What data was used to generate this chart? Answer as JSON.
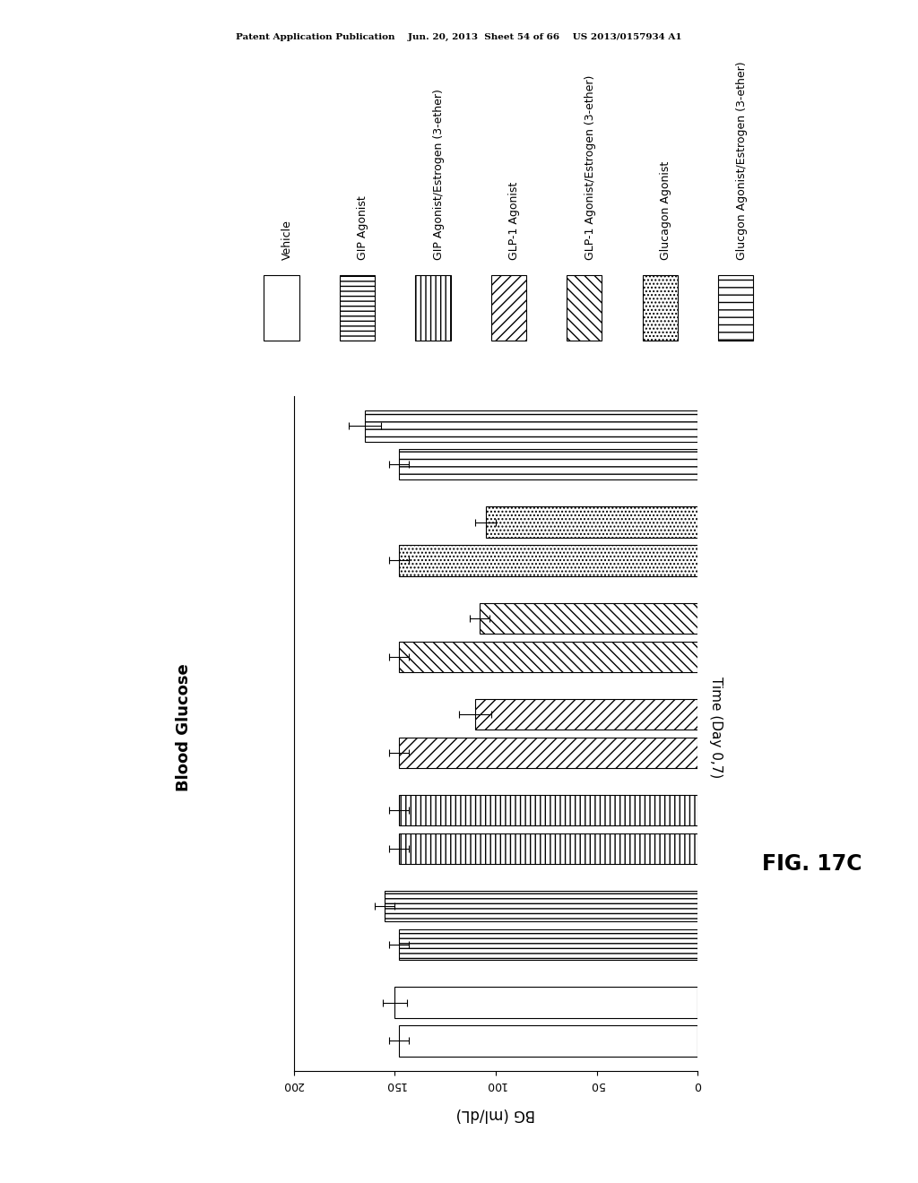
{
  "patent_header": "Patent Application Publication    Jun. 20, 2013  Sheet 54 of 66    US 2013/0157934 A1",
  "fig_label": "FIG. 17C",
  "chart_title": "Blood Glucose",
  "xlabel": "BG (ml/dL)",
  "ylabel": "Time (Day 0,7)",
  "xlim": [
    0,
    200
  ],
  "xticks": [
    0,
    50,
    100,
    150,
    200
  ],
  "groups": [
    "Vehicle",
    "GIP Agonist",
    "GIP Agonist/Estrogen (3-ether)",
    "GLP-1 Agonist",
    "GLP-1 Agonist/Estrogen (3-ether)",
    "Glucagon Agonist",
    "Glucgon Agonist/Estrogen (3-ether)"
  ],
  "values_day0": [
    148,
    148,
    148,
    148,
    148,
    148,
    148
  ],
  "values_day7": [
    150,
    155,
    148,
    110,
    108,
    105,
    165
  ],
  "errors_day0": [
    5,
    5,
    5,
    5,
    5,
    5,
    5
  ],
  "errors_day7": [
    6,
    5,
    5,
    8,
    5,
    5,
    8
  ],
  "bar_height": 0.32,
  "background_color": "#ffffff",
  "text_color": "#000000",
  "group_hatches": [
    "",
    "---",
    "|||",
    "///",
    "\\\\\\",
    "....",
    "--"
  ],
  "legend_fontsize": 9,
  "axis_title_fontsize": 12,
  "tick_fontsize": 9
}
